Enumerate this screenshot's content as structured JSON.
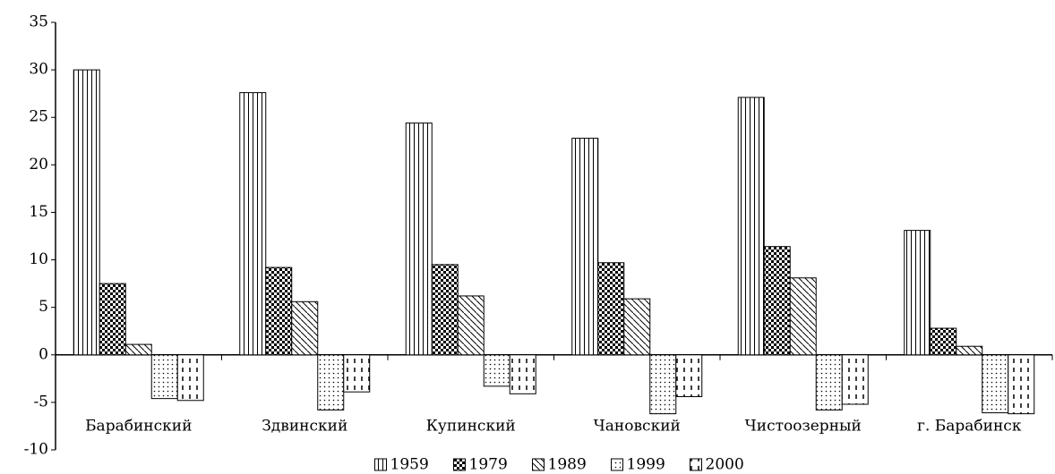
{
  "chart_data": {
    "type": "bar",
    "categories": [
      "Барабинский",
      "Здвинский",
      "Купинский",
      "Чановский",
      "Чистоозерный",
      "г. Барабинск"
    ],
    "series": [
      {
        "name": "1959",
        "color": "#000000",
        "pattern": "vertical",
        "values": [
          30,
          27.6,
          24.4,
          22.8,
          27.1,
          13.1
        ]
      },
      {
        "name": "1979",
        "color": "#000000",
        "pattern": "checker",
        "values": [
          7.5,
          9.2,
          9.5,
          9.7,
          11.4,
          2.8
        ]
      },
      {
        "name": "1989",
        "color": "#000000",
        "pattern": "diagonal",
        "values": [
          1.1,
          5.6,
          6.2,
          5.9,
          8.1,
          0.9
        ]
      },
      {
        "name": "1999",
        "color": "#000000",
        "pattern": "dots",
        "values": [
          -4.6,
          -5.8,
          -3.3,
          -6.2,
          -5.8,
          -6.1
        ]
      },
      {
        "name": "2000",
        "color": "#000000",
        "pattern": "dashes",
        "values": [
          -4.8,
          -3.9,
          -4.1,
          -4.4,
          -5.2,
          -6.2
        ]
      }
    ],
    "ylim": [
      -10,
      35
    ],
    "yticks": [
      -10,
      -5,
      0,
      5,
      10,
      15,
      20,
      25,
      30,
      35
    ],
    "grid": false,
    "legend": "bottom"
  }
}
